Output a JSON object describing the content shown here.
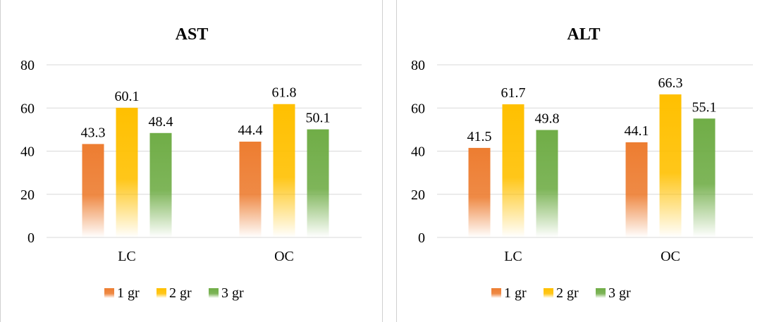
{
  "chart_data": [
    {
      "type": "bar",
      "title": "AST",
      "categories": [
        "LC",
        "OC"
      ],
      "series": [
        {
          "name": "1 gr",
          "values": [
            43.3,
            44.4
          ],
          "color": "#ED7D31"
        },
        {
          "name": "2 gr",
          "values": [
            60.1,
            61.8
          ],
          "color": "#FFC000"
        },
        {
          "name": "3 gr",
          "values": [
            48.4,
            50.1
          ],
          "color": "#70AD47"
        }
      ],
      "value_labels": [
        [
          "43.3",
          "44.4"
        ],
        [
          "60.1",
          "61.8"
        ],
        [
          "48.4",
          "50.1"
        ]
      ],
      "ylim": [
        0,
        80
      ],
      "yticks": [
        0,
        20,
        40,
        60,
        80
      ],
      "ytick_labels": [
        "0",
        "20",
        "40",
        "60",
        "80"
      ],
      "grid": true,
      "legend": "bottom",
      "xlabel": "",
      "ylabel": ""
    },
    {
      "type": "bar",
      "title": "ALT",
      "categories": [
        "LC",
        "OC"
      ],
      "series": [
        {
          "name": "1 gr",
          "values": [
            41.5,
            44.1
          ],
          "color": "#ED7D31"
        },
        {
          "name": "2 gr",
          "values": [
            61.7,
            66.3
          ],
          "color": "#FFC000"
        },
        {
          "name": "3 gr",
          "values": [
            49.8,
            55.1
          ],
          "color": "#70AD47"
        }
      ],
      "value_labels": [
        [
          "41.5",
          "44.1"
        ],
        [
          "61.7",
          "66.3"
        ],
        [
          "49.8",
          "55.1"
        ]
      ],
      "ylim": [
        0,
        80
      ],
      "yticks": [
        0,
        20,
        40,
        60,
        80
      ],
      "ytick_labels": [
        "0",
        "20",
        "40",
        "60",
        "80"
      ],
      "grid": true,
      "legend": "bottom",
      "xlabel": "",
      "ylabel": ""
    }
  ]
}
